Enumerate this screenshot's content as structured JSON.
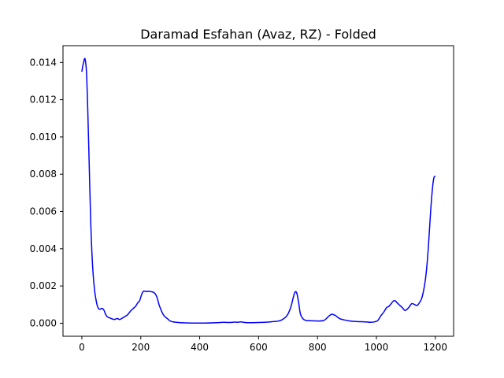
{
  "chart_data": {
    "type": "line",
    "title": "Daramad Esfahan (Avaz, RZ) - Folded",
    "xlabel": "",
    "ylabel": "",
    "xlim": [
      -64,
      1262
    ],
    "ylim": [
      -0.0007,
      0.0149
    ],
    "xticks": [
      0,
      200,
      400,
      600,
      800,
      1000,
      1200
    ],
    "yticks": [
      0.0,
      0.002,
      0.004,
      0.006,
      0.008,
      0.01,
      0.012,
      0.014
    ],
    "xtick_labels": [
      "0",
      "200",
      "400",
      "600",
      "800",
      "1000",
      "1200"
    ],
    "ytick_labels": [
      "0.000",
      "0.002",
      "0.004",
      "0.006",
      "0.008",
      "0.010",
      "0.012",
      "0.014"
    ],
    "grid": false,
    "series": [
      {
        "color": "#0000ff",
        "x": [
          0,
          3,
          6,
          9,
          12,
          16,
          20,
          25,
          30,
          36,
          43,
          50,
          56,
          62,
          68,
          75,
          80,
          86,
          92,
          100,
          110,
          120,
          128,
          135,
          145,
          155,
          165,
          175,
          182,
          190,
          196,
          202,
          208,
          214,
          220,
          226,
          232,
          240,
          248,
          255,
          262,
          268,
          275,
          282,
          290,
          300,
          310,
          320,
          335,
          350,
          380,
          420,
          460,
          480,
          500,
          520,
          530,
          540,
          560,
          600,
          620,
          640,
          650,
          660,
          675,
          690,
          700,
          710,
          718,
          724,
          730,
          736,
          742,
          750,
          760,
          780,
          800,
          820,
          830,
          840,
          848,
          856,
          864,
          875,
          890,
          910,
          930,
          950,
          965,
          980,
          995,
          1005,
          1015,
          1025,
          1035,
          1042,
          1050,
          1058,
          1064,
          1070,
          1080,
          1090,
          1095,
          1100,
          1110,
          1120,
          1130,
          1138,
          1146,
          1155,
          1165,
          1172,
          1178,
          1184,
          1190,
          1195,
          1200
        ],
        "y": [
          0.0135,
          0.0138,
          0.014,
          0.0142,
          0.0141,
          0.0134,
          0.0115,
          0.0085,
          0.0055,
          0.0032,
          0.0018,
          0.0011,
          0.0008,
          0.00075,
          0.0008,
          0.0007,
          0.0005,
          0.00035,
          0.0003,
          0.00025,
          0.0002,
          0.00025,
          0.0002,
          0.00025,
          0.00035,
          0.00045,
          0.00065,
          0.0008,
          0.0009,
          0.0011,
          0.0012,
          0.0015,
          0.0017,
          0.00172,
          0.0017,
          0.00172,
          0.0017,
          0.00168,
          0.0016,
          0.0014,
          0.001,
          0.00075,
          0.0005,
          0.00035,
          0.00025,
          0.00012,
          7e-05,
          5e-05,
          3e-05,
          2e-05,
          1e-05,
          1e-05,
          3e-05,
          5e-05,
          4e-05,
          6e-05,
          5e-05,
          7e-05,
          3e-05,
          4e-05,
          5e-05,
          7e-05,
          9e-05,
          0.0001,
          0.00015,
          0.0003,
          0.0005,
          0.0009,
          0.0014,
          0.00168,
          0.0016,
          0.0011,
          0.0005,
          0.00025,
          0.00015,
          0.00013,
          0.00012,
          0.00014,
          0.00025,
          0.0004,
          0.00048,
          0.00045,
          0.00038,
          0.00025,
          0.00018,
          0.00012,
          9e-05,
          8e-05,
          7e-05,
          5e-05,
          8e-05,
          0.00015,
          0.0004,
          0.0006,
          0.00085,
          0.0009,
          0.00105,
          0.0012,
          0.0012,
          0.0011,
          0.00095,
          0.0008,
          0.0007,
          0.0007,
          0.00085,
          0.00105,
          0.001,
          0.00095,
          0.0011,
          0.0014,
          0.0022,
          0.0032,
          0.0045,
          0.006,
          0.0072,
          0.0078,
          0.0079
        ]
      }
    ]
  }
}
